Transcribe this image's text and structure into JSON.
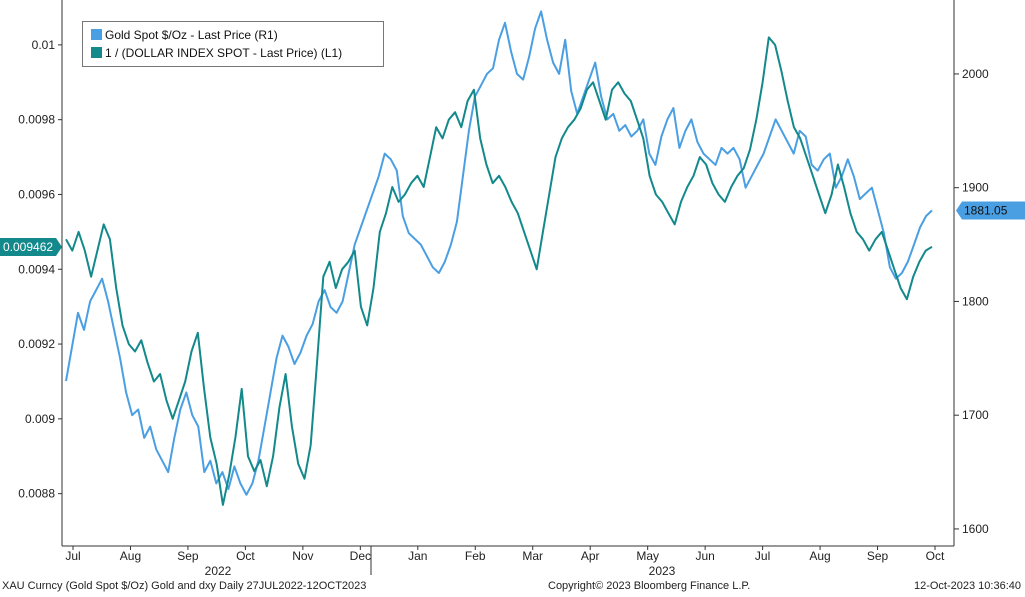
{
  "chart_data": {
    "type": "line",
    "title": "",
    "date_range": [
      "2022-07-27",
      "2023-10-12"
    ],
    "x_ticks": [
      "Jul",
      "Aug",
      "Sep",
      "Oct",
      "Nov",
      "Dec",
      "Jan",
      "Feb",
      "Mar",
      "Apr",
      "May",
      "Jun",
      "Jul",
      "Aug",
      "Sep",
      "Oct"
    ],
    "year_labels": [
      "2022",
      "2023"
    ],
    "left_axis": {
      "ticks": [
        "0.0088",
        "0.009",
        "0.0092",
        "0.0094",
        "0.0096",
        "0.0098",
        "0.01"
      ],
      "ylim": [
        0.00866,
        0.01012
      ]
    },
    "right_axis": {
      "ticks": [
        "1600",
        "1700",
        "1800",
        "1900",
        "2000"
      ],
      "ylim": [
        1585,
        2065
      ]
    },
    "series": [
      {
        "name": "Gold Spot $/Oz - Last Price (R1)",
        "axis": "right",
        "color": "#4a9fe3",
        "last_value_label": "1881.05",
        "values": [
          1730,
          1760,
          1790,
          1775,
          1800,
          1810,
          1820,
          1800,
          1775,
          1750,
          1720,
          1700,
          1705,
          1680,
          1690,
          1670,
          1660,
          1650,
          1680,
          1705,
          1720,
          1700,
          1690,
          1650,
          1660,
          1640,
          1650,
          1635,
          1655,
          1640,
          1630,
          1640,
          1660,
          1690,
          1720,
          1750,
          1770,
          1760,
          1745,
          1755,
          1770,
          1780,
          1800,
          1810,
          1795,
          1790,
          1800,
          1825,
          1850,
          1865,
          1880,
          1895,
          1910,
          1930,
          1925,
          1915,
          1875,
          1860,
          1855,
          1850,
          1840,
          1830,
          1825,
          1835,
          1850,
          1870,
          1910,
          1950,
          1980,
          1990,
          2000,
          2005,
          2030,
          2045,
          2020,
          2000,
          1995,
          2015,
          2040,
          2055,
          2030,
          2010,
          2000,
          2030,
          1985,
          1965,
          1980,
          1995,
          2010,
          1980,
          1960,
          1965,
          1950,
          1955,
          1945,
          1950,
          1960,
          1930,
          1920,
          1945,
          1960,
          1970,
          1935,
          1950,
          1960,
          1940,
          1930,
          1925,
          1920,
          1935,
          1930,
          1935,
          1925,
          1900,
          1910,
          1920,
          1930,
          1945,
          1960,
          1950,
          1940,
          1930,
          1950,
          1945,
          1920,
          1915,
          1925,
          1930,
          1900,
          1910,
          1925,
          1910,
          1890,
          1895,
          1900,
          1880,
          1860,
          1830,
          1820,
          1825,
          1835,
          1850,
          1865,
          1875,
          1880
        ]
      },
      {
        "name": "1 / (DOLLAR INDEX SPOT - Last Price) (L1)",
        "axis": "left",
        "color": "#13898b",
        "last_value_label": "0.009462",
        "values": [
          0.00948,
          0.00945,
          0.0095,
          0.00945,
          0.00938,
          0.00945,
          0.00952,
          0.00948,
          0.00935,
          0.00925,
          0.0092,
          0.00918,
          0.00921,
          0.00915,
          0.0091,
          0.00912,
          0.00905,
          0.009,
          0.00905,
          0.0091,
          0.00918,
          0.00923,
          0.00908,
          0.00895,
          0.00888,
          0.00877,
          0.00885,
          0.00895,
          0.00908,
          0.0089,
          0.00886,
          0.00889,
          0.00882,
          0.0089,
          0.00903,
          0.00912,
          0.00898,
          0.00888,
          0.00884,
          0.00893,
          0.00915,
          0.00938,
          0.00942,
          0.00935,
          0.0094,
          0.00942,
          0.00945,
          0.0093,
          0.00925,
          0.00935,
          0.0095,
          0.00955,
          0.00962,
          0.00958,
          0.0096,
          0.00963,
          0.00965,
          0.00962,
          0.0097,
          0.00978,
          0.00975,
          0.0098,
          0.00982,
          0.00978,
          0.00985,
          0.00988,
          0.00975,
          0.00968,
          0.00963,
          0.00965,
          0.00962,
          0.00958,
          0.00955,
          0.0095,
          0.00945,
          0.0094,
          0.0095,
          0.0096,
          0.0097,
          0.00975,
          0.00978,
          0.0098,
          0.00983,
          0.00988,
          0.0099,
          0.00985,
          0.0098,
          0.00988,
          0.0099,
          0.00987,
          0.00985,
          0.0098,
          0.00975,
          0.00965,
          0.0096,
          0.00958,
          0.00955,
          0.00952,
          0.00958,
          0.00962,
          0.00965,
          0.0097,
          0.00968,
          0.00963,
          0.0096,
          0.00958,
          0.00962,
          0.00965,
          0.00967,
          0.00972,
          0.0098,
          0.0099,
          0.01002,
          0.01,
          0.00993,
          0.00985,
          0.00978,
          0.00975,
          0.0097,
          0.00965,
          0.0096,
          0.00955,
          0.0096,
          0.00968,
          0.00962,
          0.00955,
          0.0095,
          0.00948,
          0.00945,
          0.00948,
          0.0095,
          0.00945,
          0.0094,
          0.00935,
          0.00932,
          0.00938,
          0.00942,
          0.00945,
          0.00946
        ]
      }
    ]
  },
  "footer": {
    "left": "XAU Curncy (Gold Spot  $/Oz) Gold and dxy  Daily 27JUL2022-12OCT2023",
    "center": "Copyright© 2023 Bloomberg Finance L.P.",
    "right": "12-Oct-2023 10:36:40"
  }
}
